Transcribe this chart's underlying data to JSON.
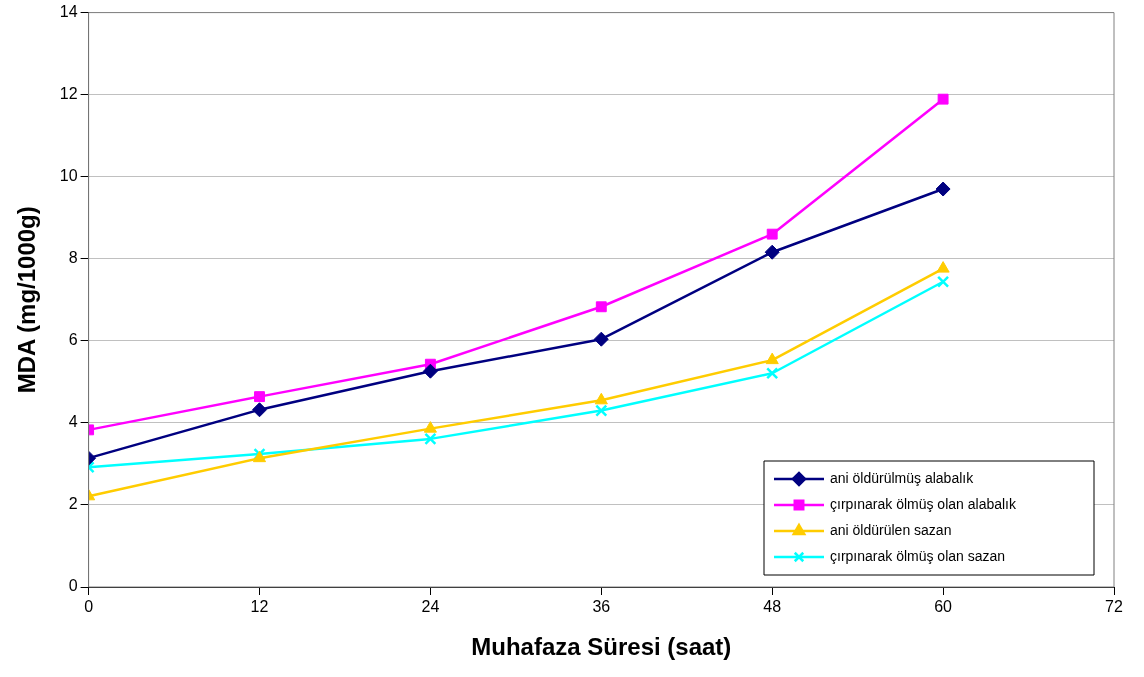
{
  "chart_data": {
    "type": "line",
    "xlabel": "Muhafaza Süresi (saat)",
    "ylabel": "MDA (mg/1000g)",
    "x": [
      0,
      12,
      24,
      36,
      48,
      60
    ],
    "xlim": [
      0,
      72
    ],
    "xticks": [
      0,
      12,
      24,
      36,
      48,
      60,
      72
    ],
    "ylim": [
      0,
      14
    ],
    "yticks": [
      0,
      2,
      4,
      6,
      8,
      10,
      12,
      14
    ],
    "grid": "y",
    "legend": "bottom right",
    "series": [
      {
        "name": "ani öldürülmüş alabalık",
        "color": "#000080",
        "marker": "diamond",
        "values": [
          3.14,
          4.32,
          5.26,
          6.04,
          8.16,
          9.7
        ]
      },
      {
        "name": "çırpınarak ölmüş olan alabalık",
        "color": "#ff00ff",
        "marker": "square",
        "values": [
          3.83,
          4.64,
          5.43,
          6.83,
          8.6,
          11.89
        ]
      },
      {
        "name": "ani öldürülen sazan",
        "color": "#ffcc00",
        "marker": "triangle",
        "values": [
          2.21,
          3.14,
          3.86,
          4.55,
          5.53,
          7.76
        ]
      },
      {
        "name": "çırpınarak ölmüş olan sazan",
        "color": "#00ffff",
        "marker": "cross",
        "values": [
          2.92,
          3.24,
          3.61,
          4.3,
          5.21,
          7.44
        ]
      }
    ]
  }
}
